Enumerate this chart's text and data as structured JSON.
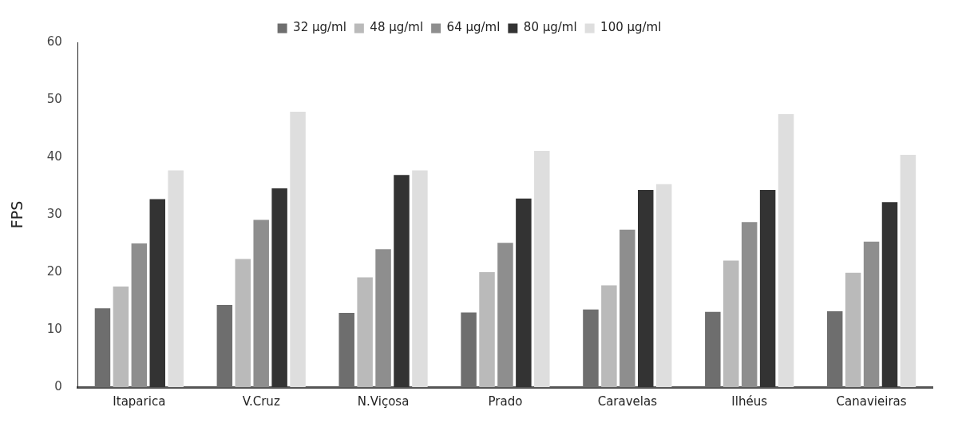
{
  "chart_data": {
    "type": "bar",
    "ylabel": "FPS",
    "categories": [
      "Itaparica",
      "V.Cruz",
      "N.Viçosa",
      "Prado",
      "Caravelas",
      "Ilhéus",
      "Canavieiras"
    ],
    "series": [
      {
        "name": "32 µg/ml",
        "color": "#6e6e6e",
        "values": [
          13.7,
          14.3,
          12.9,
          13.0,
          13.5,
          13.1,
          13.2
        ]
      },
      {
        "name": "48 µg/ml",
        "color": "#bababa",
        "values": [
          17.5,
          22.3,
          19.1,
          20.0,
          17.7,
          22.0,
          19.9
        ]
      },
      {
        "name": "64 µg/ml",
        "color": "#8e8e8e",
        "values": [
          25.0,
          29.1,
          24.0,
          25.1,
          27.4,
          28.7,
          25.3
        ]
      },
      {
        "name": "80 µg/ml",
        "color": "#333333",
        "values": [
          32.7,
          34.6,
          36.9,
          32.8,
          34.3,
          34.3,
          32.2
        ]
      },
      {
        "name": "100 µg/ml",
        "color": "#dedede",
        "values": [
          37.7,
          47.9,
          37.7,
          41.1,
          35.3,
          47.5,
          40.4
        ]
      }
    ],
    "ylim": [
      0,
      60
    ],
    "yticks": [
      0,
      10,
      20,
      30,
      40,
      50,
      60
    ],
    "grid": false,
    "legend": "top"
  }
}
